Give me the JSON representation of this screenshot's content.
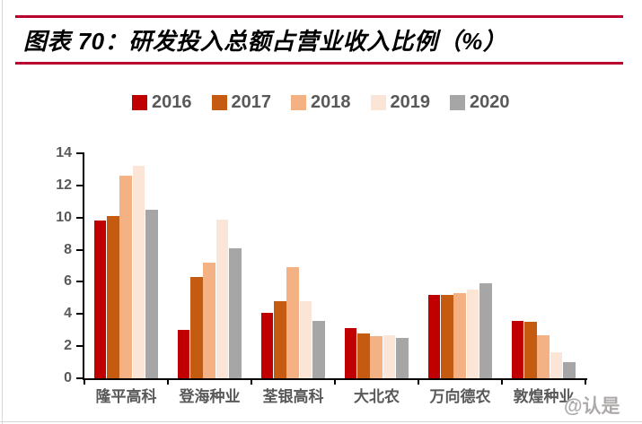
{
  "page": {
    "background": "#ffffff",
    "accent_rule_color": "#b80030"
  },
  "header": {
    "title": "图表 70：研发投入总额占营业收入比例（%）"
  },
  "watermark": {
    "text": "@认是"
  },
  "chart_data": {
    "type": "bar",
    "title": "研发投入总额占营业收入比例（%）",
    "categories": [
      "隆平高科",
      "登海种业",
      "荃银高科",
      "大北农",
      "万向德农",
      "敦煌种业"
    ],
    "series": [
      {
        "name": "2016",
        "color": "#C00000",
        "values": [
          9.8,
          3.0,
          4.1,
          3.1,
          5.2,
          3.6
        ]
      },
      {
        "name": "2017",
        "color": "#C55A11",
        "values": [
          10.1,
          6.3,
          4.8,
          2.8,
          5.2,
          3.5
        ]
      },
      {
        "name": "2018",
        "color": "#F4B183",
        "values": [
          12.6,
          7.2,
          6.9,
          2.6,
          5.3,
          2.7
        ]
      },
      {
        "name": "2019",
        "color": "#FBE5D6",
        "values": [
          13.2,
          9.9,
          4.8,
          2.7,
          5.5,
          1.6
        ]
      },
      {
        "name": "2020",
        "color": "#A6A6A6",
        "values": [
          10.5,
          8.1,
          3.6,
          2.5,
          5.9,
          1.0
        ]
      }
    ],
    "xlabel": "",
    "ylabel": "",
    "ylim": [
      0,
      14
    ],
    "ytick_step": 2,
    "grid": false,
    "legend_position": "top",
    "axis_color": "#000000",
    "label_color": "#595959"
  }
}
